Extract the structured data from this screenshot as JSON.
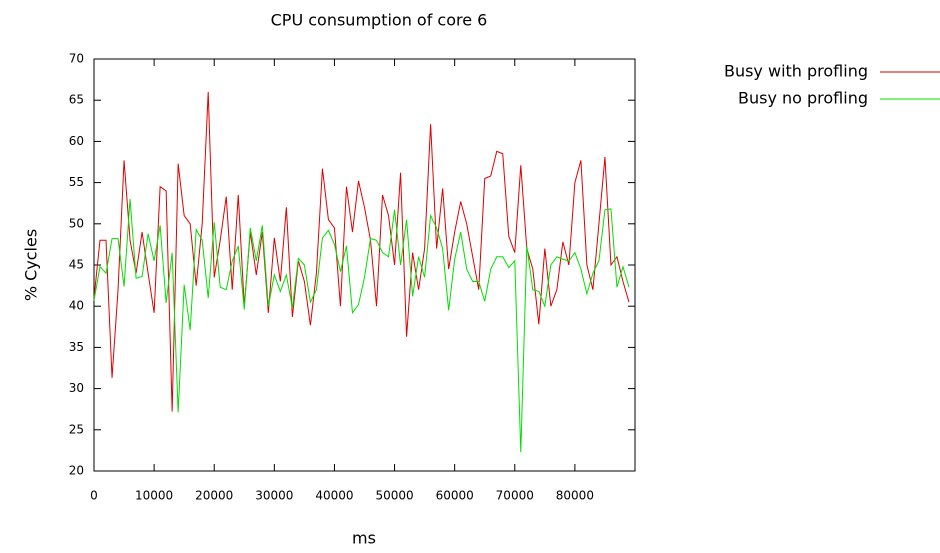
{
  "chart_data": {
    "type": "line",
    "title": "CPU consumption of core 6",
    "xlabel": "ms",
    "ylabel": "% Cycles",
    "x": [
      0,
      1000,
      2000,
      3000,
      4000,
      5000,
      6000,
      7000,
      8000,
      9000,
      10000,
      11000,
      12000,
      13000,
      14000,
      15000,
      16000,
      17000,
      18000,
      19000,
      20000,
      21000,
      22000,
      23000,
      24000,
      25000,
      26000,
      27000,
      28000,
      29000,
      30000,
      31000,
      32000,
      33000,
      34000,
      35000,
      36000,
      37000,
      38000,
      39000,
      40000,
      41000,
      42000,
      43000,
      44000,
      45000,
      46000,
      47000,
      48000,
      49000,
      50000,
      51000,
      52000,
      53000,
      54000,
      55000,
      56000,
      57000,
      58000,
      59000,
      60000,
      61000,
      62000,
      63000,
      64000,
      65000,
      66000,
      67000,
      68000,
      69000,
      70000,
      71000,
      72000,
      73000,
      74000,
      75000,
      76000,
      77000,
      78000,
      79000,
      80000,
      81000,
      82000,
      83000,
      84000,
      85000,
      86000,
      87000,
      88000,
      89000
    ],
    "series": [
      {
        "name": "Busy with profling",
        "color": "#e00000",
        "values": [
          41,
          48,
          48,
          31.3,
          42,
          57.7,
          48,
          44,
          49,
          44,
          39.2,
          54.5,
          54,
          27.2,
          57.3,
          51,
          50,
          42.5,
          50,
          66,
          43.5,
          48,
          53.3,
          42,
          53.5,
          40,
          49,
          43.8,
          49,
          39.2,
          48.3,
          43,
          52,
          38.7,
          45.5,
          43,
          37.7,
          44,
          56.7,
          50.5,
          49.5,
          40,
          54.5,
          49,
          55.2,
          52,
          48,
          40,
          53.5,
          51,
          45,
          56.2,
          36.3,
          46.5,
          42,
          47,
          62.1,
          47,
          54.3,
          44.5,
          49,
          52.7,
          50,
          46,
          42,
          55.5,
          55.8,
          58.8,
          58.5,
          48.5,
          46.5,
          57.1,
          47,
          44.5,
          37.8,
          47,
          40,
          42,
          47.8,
          45,
          55,
          57.7,
          45,
          42,
          50,
          58.1,
          45,
          46,
          43,
          40.5
        ]
      },
      {
        "name": "Busy no profling",
        "color": "#00e000",
        "values": [
          40.7,
          44.8,
          44,
          48.2,
          48.2,
          42.4,
          53,
          43.4,
          43.6,
          48.8,
          45.5,
          49.8,
          40.4,
          46.5,
          27.1,
          42.6,
          37.1,
          49.3,
          48,
          41,
          50.2,
          42.3,
          42,
          45.5,
          47.3,
          39.6,
          49.5,
          45.5,
          49.8,
          40,
          43.8,
          41.8,
          43.8,
          39.8,
          45.8,
          45,
          40.5,
          42,
          48.3,
          49.2,
          47.5,
          44.2,
          47.3,
          39.2,
          40.2,
          43.5,
          48.2,
          48,
          46.5,
          46,
          51.7,
          45,
          50.5,
          41.2,
          46,
          43.5,
          51,
          49.5,
          47,
          39.5,
          45.7,
          49,
          44.5,
          43,
          43,
          40.6,
          44.5,
          46,
          46,
          44.7,
          45.5,
          22.3,
          47.3,
          42,
          41.8,
          40,
          45,
          46,
          45.7,
          45.5,
          46.5,
          44.5,
          41.5,
          44,
          45.5,
          51.7,
          51.8,
          42.3,
          44.8,
          42.3
        ]
      }
    ],
    "xlim": [
      0,
      90000
    ],
    "ylim": [
      20,
      70
    ],
    "xticks": [
      0,
      10000,
      20000,
      30000,
      40000,
      50000,
      60000,
      70000,
      80000
    ],
    "yticks": [
      20,
      25,
      30,
      35,
      40,
      45,
      50,
      55,
      60,
      65,
      70
    ],
    "legend": "top-right"
  }
}
